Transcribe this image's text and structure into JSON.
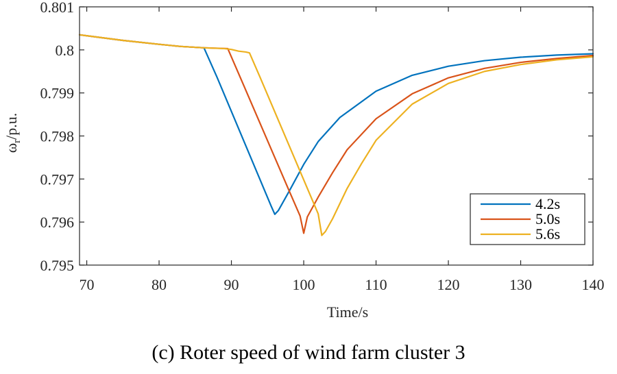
{
  "caption": "(c) Roter speed of wind farm cluster 3",
  "chart_data": {
    "type": "line",
    "title": "",
    "xlabel": "Time/s",
    "ylabel_main": "ω",
    "ylabel_sub": "r",
    "ylabel_rest": "/p.u.",
    "xlim": [
      69,
      140
    ],
    "ylim": [
      0.795,
      0.801
    ],
    "xticks": [
      70,
      80,
      90,
      100,
      110,
      120,
      130,
      140
    ],
    "yticks": [
      0.795,
      0.796,
      0.797,
      0.798,
      0.799,
      0.8,
      0.801
    ],
    "xtick_labels": [
      "70",
      "80",
      "90",
      "100",
      "110",
      "120",
      "130",
      "140"
    ],
    "ytick_labels": [
      "0.795",
      "0.796",
      "0.797",
      "0.798",
      "0.799",
      "0.8",
      "0.801"
    ],
    "grid": false,
    "legend_position": "bottom-right",
    "series": [
      {
        "name": "4.2s",
        "color": "#0072BD",
        "x": [
          69,
          75,
          80,
          83,
          85,
          86.2,
          88,
          90,
          92,
          94,
          95.5,
          96,
          96.5,
          98,
          100,
          102,
          105,
          110,
          115,
          120,
          125,
          130,
          135,
          140
        ],
        "y": [
          0.80035,
          0.80022,
          0.80013,
          0.80008,
          0.80006,
          0.80005,
          0.79937,
          0.79857,
          0.79777,
          0.79697,
          0.79637,
          0.79618,
          0.79627,
          0.79672,
          0.79734,
          0.79787,
          0.79843,
          0.79904,
          0.79941,
          0.79962,
          0.79975,
          0.79983,
          0.79988,
          0.79991
        ]
      },
      {
        "name": "5.0s",
        "color": "#D95319",
        "x": [
          69,
          75,
          80,
          83,
          86,
          89.5,
          92,
          94,
          96,
          98,
          99.5,
          100,
          100.5,
          102,
          104,
          106,
          110,
          115,
          120,
          125,
          130,
          135,
          140
        ],
        "y": [
          0.80035,
          0.80022,
          0.80013,
          0.80008,
          0.80005,
          0.80003,
          0.79906,
          0.79828,
          0.7975,
          0.79672,
          0.79614,
          0.79574,
          0.79612,
          0.79658,
          0.79715,
          0.79768,
          0.7984,
          0.79898,
          0.79935,
          0.79957,
          0.79971,
          0.7998,
          0.79987
        ]
      },
      {
        "name": "5.6s",
        "color": "#EDB120",
        "x": [
          69,
          75,
          80,
          83,
          86,
          89,
          90,
          91,
          92,
          92.5,
          94,
          96,
          98,
          100,
          102,
          102.5,
          103,
          104,
          106,
          108,
          110,
          115,
          120,
          125,
          130,
          135,
          140
        ],
        "y": [
          0.80035,
          0.80022,
          0.80013,
          0.80008,
          0.80005,
          0.80003,
          0.80001,
          0.79997,
          0.79995,
          0.79993,
          0.79935,
          0.79856,
          0.79777,
          0.79698,
          0.79619,
          0.79569,
          0.79578,
          0.79608,
          0.79678,
          0.79736,
          0.7979,
          0.79874,
          0.79922,
          0.7995,
          0.79966,
          0.79977,
          0.79984
        ]
      }
    ]
  }
}
